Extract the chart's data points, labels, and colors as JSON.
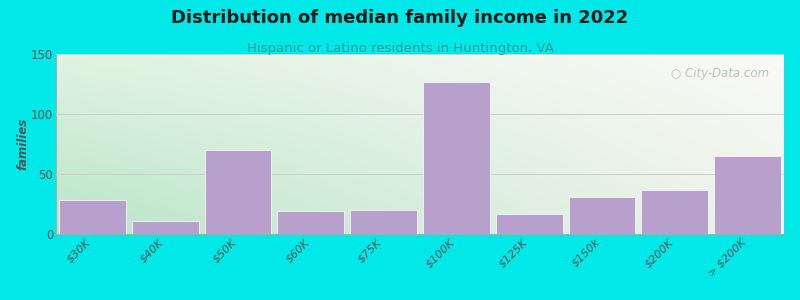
{
  "title": "Distribution of median family income in 2022",
  "subtitle": "Hispanic or Latino residents in Huntington, VA",
  "categories": [
    "$30K",
    "$40K",
    "$50K",
    "$60K",
    "$75K",
    "$100K",
    "$125K",
    "$150k",
    "$200K",
    "> $200K"
  ],
  "values": [
    28,
    11,
    70,
    19,
    20,
    127,
    17,
    31,
    37,
    65
  ],
  "bar_color": "#b8a0cc",
  "background_outer": "#00e8e8",
  "background_grad_start": "#c8e8c8",
  "background_grad_end": "#f5f5ee",
  "title_color": "#1a1a1a",
  "subtitle_color": "#3a9a9a",
  "ylabel": "families",
  "ylim": [
    0,
    150
  ],
  "yticks": [
    0,
    50,
    100,
    150
  ],
  "watermark": "City-Data.com",
  "grid_color": "#cccccc",
  "axis_color": "#aaaaaa",
  "tick_color": "#555555",
  "watermark_color": "#aababa"
}
